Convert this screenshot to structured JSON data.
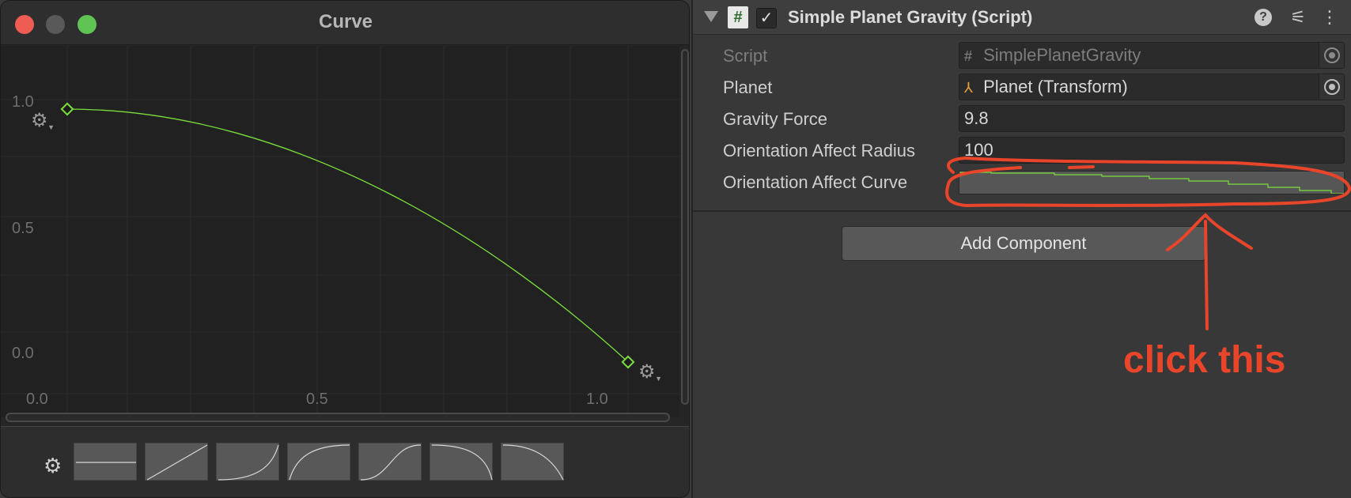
{
  "curve_window": {
    "title": "Curve",
    "y_axis_labels": [
      "1.0",
      "0.5",
      "0.0"
    ],
    "x_axis_labels": [
      "0.0",
      "0.5",
      "1.0"
    ],
    "curve_color": "#7cde3c",
    "presets": [
      "flat",
      "linear",
      "ease-in",
      "ease-out",
      "ease-in-out",
      "ease-in-reverse",
      "ease-out-reverse"
    ]
  },
  "inspector": {
    "component_title": "Simple Planet Gravity (Script)",
    "enabled": true,
    "properties": [
      {
        "label": "Script",
        "value": "SimplePlanetGravity",
        "disabled": true
      },
      {
        "label": "Planet",
        "value": "Planet (Transform)"
      },
      {
        "label": "Gravity Force",
        "value": "9.8"
      },
      {
        "label": "Orientation Affect Radius",
        "value": "100"
      },
      {
        "label": "Orientation Affect Curve",
        "value": ""
      }
    ],
    "add_component_label": "Add Component"
  },
  "annotation": {
    "text": "click this",
    "color": "#e8452b"
  }
}
